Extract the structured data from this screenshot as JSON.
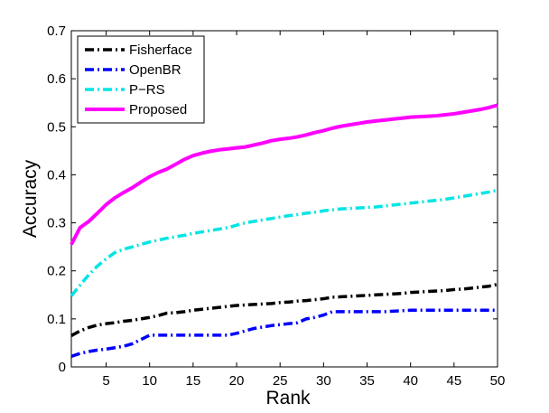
{
  "chart_data": {
    "type": "line",
    "title": "",
    "xlabel": "Rank",
    "ylabel": "Accuracy",
    "xlim": [
      1,
      50
    ],
    "ylim": [
      0,
      0.7
    ],
    "x_ticks": [
      5,
      10,
      15,
      20,
      25,
      30,
      35,
      40,
      45,
      50
    ],
    "y_ticks": [
      0,
      0.1,
      0.2,
      0.3,
      0.4,
      0.5,
      0.6,
      0.7
    ],
    "grid": false,
    "legend_position": "top-left",
    "x": [
      1,
      2,
      3,
      4,
      5,
      6,
      7,
      8,
      9,
      10,
      11,
      12,
      13,
      14,
      15,
      16,
      17,
      18,
      19,
      20,
      21,
      22,
      23,
      24,
      25,
      26,
      27,
      28,
      29,
      30,
      31,
      32,
      33,
      34,
      35,
      36,
      37,
      38,
      39,
      40,
      41,
      42,
      43,
      44,
      45,
      46,
      47,
      48,
      49,
      50
    ],
    "series": [
      {
        "name": "Fisherface",
        "color": "#000000",
        "dash": "dashdot",
        "values": [
          0.065,
          0.075,
          0.082,
          0.087,
          0.09,
          0.092,
          0.095,
          0.097,
          0.1,
          0.103,
          0.107,
          0.112,
          0.113,
          0.115,
          0.118,
          0.12,
          0.122,
          0.124,
          0.126,
          0.128,
          0.129,
          0.13,
          0.131,
          0.132,
          0.134,
          0.135,
          0.137,
          0.138,
          0.14,
          0.142,
          0.145,
          0.146,
          0.147,
          0.148,
          0.149,
          0.15,
          0.151,
          0.152,
          0.153,
          0.155,
          0.156,
          0.157,
          0.158,
          0.159,
          0.161,
          0.162,
          0.164,
          0.166,
          0.168,
          0.172
        ]
      },
      {
        "name": "OpenBR",
        "color": "#0000ff",
        "dash": "dashdot",
        "values": [
          0.022,
          0.028,
          0.032,
          0.035,
          0.037,
          0.04,
          0.043,
          0.048,
          0.057,
          0.066,
          0.066,
          0.066,
          0.066,
          0.066,
          0.066,
          0.066,
          0.066,
          0.066,
          0.066,
          0.07,
          0.075,
          0.08,
          0.083,
          0.086,
          0.088,
          0.09,
          0.092,
          0.1,
          0.103,
          0.108,
          0.115,
          0.115,
          0.115,
          0.115,
          0.115,
          0.115,
          0.115,
          0.116,
          0.117,
          0.118,
          0.118,
          0.118,
          0.118,
          0.118,
          0.118,
          0.118,
          0.118,
          0.118,
          0.118,
          0.118
        ]
      },
      {
        "name": "P−RS",
        "color": "#00e5e5",
        "dash": "dashdot",
        "values": [
          0.148,
          0.17,
          0.192,
          0.21,
          0.225,
          0.238,
          0.245,
          0.25,
          0.255,
          0.26,
          0.264,
          0.268,
          0.271,
          0.274,
          0.278,
          0.281,
          0.284,
          0.287,
          0.29,
          0.295,
          0.3,
          0.303,
          0.306,
          0.309,
          0.312,
          0.315,
          0.317,
          0.32,
          0.322,
          0.325,
          0.327,
          0.329,
          0.33,
          0.331,
          0.332,
          0.333,
          0.335,
          0.337,
          0.339,
          0.341,
          0.343,
          0.345,
          0.347,
          0.349,
          0.352,
          0.355,
          0.358,
          0.361,
          0.364,
          0.368
        ]
      },
      {
        "name": "Proposed",
        "color": "#ff00ff",
        "dash": "solid",
        "values": [
          0.255,
          0.29,
          0.303,
          0.32,
          0.338,
          0.352,
          0.363,
          0.373,
          0.385,
          0.396,
          0.405,
          0.412,
          0.422,
          0.432,
          0.44,
          0.445,
          0.449,
          0.452,
          0.454,
          0.456,
          0.458,
          0.462,
          0.466,
          0.471,
          0.474,
          0.476,
          0.479,
          0.483,
          0.488,
          0.492,
          0.497,
          0.501,
          0.504,
          0.507,
          0.51,
          0.512,
          0.514,
          0.516,
          0.518,
          0.52,
          0.521,
          0.522,
          0.523,
          0.525,
          0.527,
          0.53,
          0.533,
          0.536,
          0.54,
          0.545
        ]
      }
    ]
  }
}
